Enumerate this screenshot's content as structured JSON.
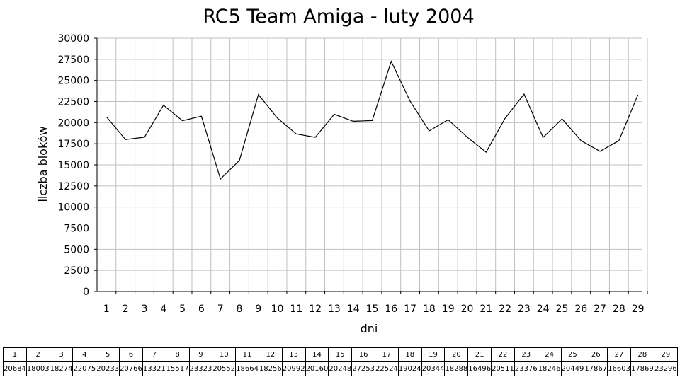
{
  "chart_data": {
    "type": "line",
    "title": "RC5 Team Amiga - luty 2004",
    "xlabel": "dni",
    "ylabel": "liczba bloków",
    "ylim": [
      0,
      30000
    ],
    "yticks": [
      0,
      2500,
      5000,
      7500,
      10000,
      12500,
      15000,
      17500,
      20000,
      22500,
      25000,
      27500,
      30000
    ],
    "grid": true,
    "legend": "none",
    "line_color": "#000000",
    "grid_color": "#c0c0c0",
    "categories": [
      "1",
      "2",
      "3",
      "4",
      "5",
      "6",
      "7",
      "8",
      "9",
      "10",
      "11",
      "12",
      "13",
      "14",
      "15",
      "16",
      "17",
      "18",
      "19",
      "20",
      "21",
      "22",
      "23",
      "24",
      "25",
      "26",
      "27",
      "28",
      "29"
    ],
    "series": [
      {
        "values": [
          20684,
          18003,
          18274,
          22075,
          20233,
          20766,
          13321,
          15517,
          23323,
          20552,
          18664,
          18256,
          20992,
          20160,
          20248,
          27253,
          22524,
          19024,
          20344,
          18288,
          16496,
          20511,
          23376,
          18246,
          20449,
          17867,
          16603,
          17869,
          23296
        ]
      }
    ]
  }
}
